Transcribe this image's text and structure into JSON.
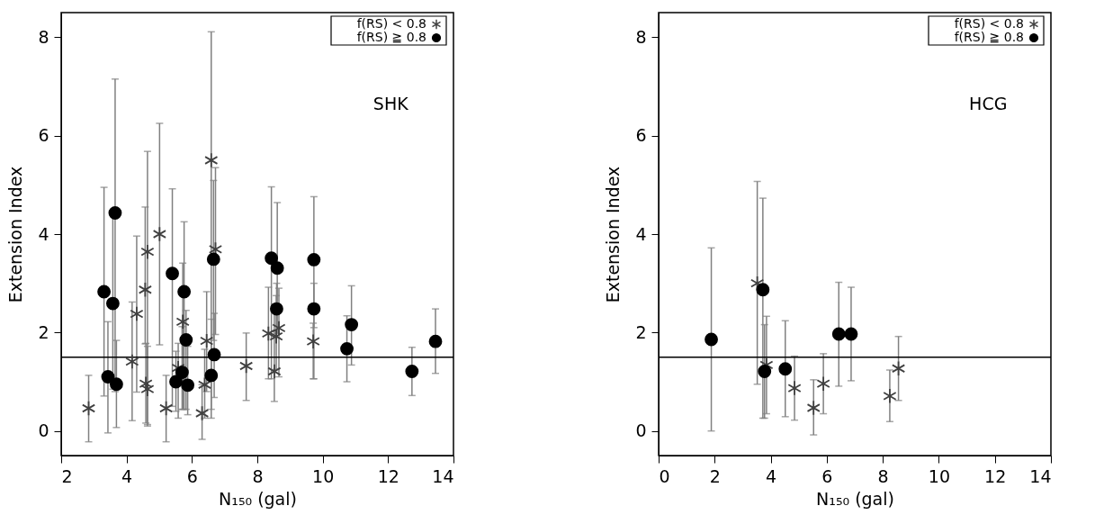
{
  "chart_data": [
    {
      "type": "scatter",
      "title": "SHK",
      "xlabel": "N₁₅₀ (gal)",
      "ylabel": "Extension Index",
      "xlim": [
        2,
        14
      ],
      "xticks": [
        2,
        4,
        6,
        8,
        10,
        12,
        14
      ],
      "ylim": [
        -0.5,
        8.5
      ],
      "yticks": [
        0,
        2,
        4,
        6,
        8
      ],
      "grid": false,
      "legend": "top right",
      "ref_lines": [
        {
          "axis": "y",
          "value": 1.5,
          "color": "#000000"
        }
      ],
      "series": [
        {
          "name": "f(RS) < 0.8",
          "color": "#404040",
          "marker": "cross",
          "x": [
            2.84,
            4.17,
            4.31,
            4.57,
            4.64,
            4.59,
            4.64,
            5.01,
            5.21,
            5.58,
            5.72,
            6.39,
            6.31,
            6.45,
            6.59,
            6.72,
            7.66,
            8.34,
            8.52,
            8.58,
            8.66,
            9.71
          ],
          "values": [
            0.46,
            1.41,
            2.38,
            2.87,
            3.64,
            0.96,
            0.85,
            4.0,
            0.46,
            1.28,
            2.22,
            0.94,
            0.36,
            1.83,
            5.5,
            3.69,
            1.32,
            1.98,
            1.21,
            1.92,
            2.09,
            1.82
          ],
          "errors": [
            [
              -0.22,
              1.13
            ],
            [
              0.21,
              2.62
            ],
            [
              0.79,
              3.96
            ],
            [
              1.77,
              4.55
            ],
            [
              0.13,
              5.68
            ],
            [
              0.16,
              1.78
            ],
            [
              0.1,
              1.72
            ],
            [
              1.75,
              6.25
            ],
            [
              -0.22,
              1.13
            ],
            [
              0.26,
              1.78
            ],
            [
              0.44,
              3.41
            ],
            [
              0.26,
              1.66
            ],
            [
              -0.17,
              0.94
            ],
            [
              0.8,
              2.83
            ],
            [
              0.26,
              8.11
            ],
            [
              1.96,
              5.35
            ],
            [
              0.62,
              1.99
            ],
            [
              1.06,
              2.92
            ],
            [
              0.6,
              2.58
            ],
            [
              1.25,
              2.75
            ],
            [
              1.1,
              2.9
            ],
            [
              1.06,
              2.19
            ]
          ]
        },
        {
          "name": "f(RS) ≧ 0.8",
          "color": "#000000",
          "marker": "circle",
          "x": [
            3.31,
            3.43,
            3.58,
            3.65,
            3.69,
            5.4,
            5.51,
            5.7,
            5.76,
            5.82,
            5.87,
            6.59,
            6.66,
            6.68,
            8.43,
            8.61,
            8.59,
            9.73,
            9.73,
            10.74,
            10.88,
            12.73,
            13.45
          ],
          "values": [
            2.83,
            1.1,
            2.59,
            4.43,
            0.95,
            3.2,
            1.0,
            1.19,
            2.83,
            1.85,
            0.93,
            1.13,
            3.49,
            1.55,
            3.51,
            3.31,
            2.48,
            3.48,
            2.48,
            1.67,
            2.16,
            1.21,
            1.82
          ],
          "errors": [
            [
              0.71,
              4.95
            ],
            [
              -0.04,
              2.22
            ],
            [
              0.85,
              4.4
            ],
            [
              0.8,
              7.15
            ],
            [
              0.07,
              1.84
            ],
            [
              0.5,
              4.92
            ],
            [
              0.4,
              1.62
            ],
            [
              0.44,
              2.12
            ],
            [
              0.44,
              4.25
            ],
            [
              0.44,
              2.45
            ],
            [
              0.33,
              1.72
            ],
            [
              0.44,
              2.27
            ],
            [
              1.84,
              5.09
            ],
            [
              0.68,
              2.39
            ],
            [
              1.06,
              4.96
            ],
            [
              1.98,
              4.64
            ],
            [
              1.9,
              3.0
            ],
            [
              2.1,
              4.76
            ],
            [
              1.06,
              3.0
            ],
            [
              1.0,
              2.34
            ],
            [
              1.34,
              2.95
            ],
            [
              0.72,
              1.7
            ],
            [
              1.17,
              2.48
            ]
          ]
        }
      ]
    },
    {
      "type": "scatter",
      "title": "HCG",
      "xlabel": "N₁₅₀ (gal)",
      "ylabel": "Extension Index",
      "xlim": [
        0,
        14
      ],
      "xticks": [
        0,
        2,
        4,
        6,
        8,
        10,
        12,
        14
      ],
      "ylim": [
        -0.5,
        8.5
      ],
      "yticks": [
        0,
        2,
        4,
        6,
        8
      ],
      "grid": false,
      "legend": "top right",
      "ref_lines": [
        {
          "axis": "y",
          "value": 1.5,
          "color": "#000000"
        }
      ],
      "series": [
        {
          "name": "f(RS) < 0.8",
          "color": "#404040",
          "marker": "cross",
          "x": [
            3.52,
            3.85,
            4.85,
            5.53,
            5.88,
            8.25,
            8.56
          ],
          "values": [
            3.0,
            1.34,
            0.87,
            0.47,
            0.96,
            0.71,
            1.27
          ],
          "errors": [
            [
              0.95,
              5.07
            ],
            [
              0.35,
              2.33
            ],
            [
              0.22,
              1.52
            ],
            [
              -0.08,
              1.04
            ],
            [
              0.35,
              1.57
            ],
            [
              0.19,
              1.24
            ],
            [
              0.62,
              1.92
            ]
          ]
        },
        {
          "name": "f(RS) ≧ 0.8",
          "color": "#000000",
          "marker": "circle",
          "x": [
            1.88,
            3.72,
            3.78,
            4.52,
            6.43,
            6.87
          ],
          "values": [
            1.86,
            2.87,
            1.21,
            1.26,
            1.97,
            1.97
          ],
          "errors": [
            [
              0.0,
              3.72
            ],
            [
              0.26,
              4.73
            ],
            [
              0.26,
              2.16
            ],
            [
              0.29,
              2.24
            ],
            [
              0.91,
              3.02
            ],
            [
              1.02,
              2.92
            ]
          ]
        }
      ]
    }
  ]
}
